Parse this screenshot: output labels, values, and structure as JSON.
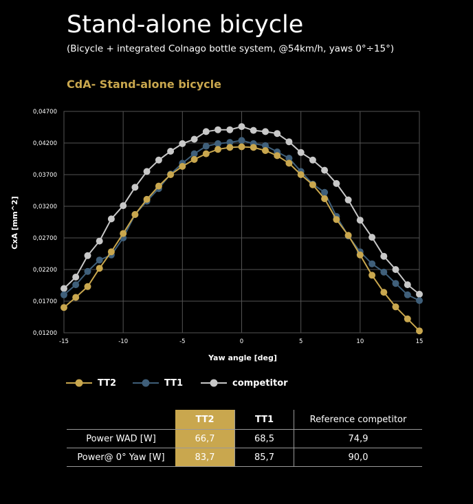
{
  "header": {
    "title": "Stand-alone bicycle",
    "subtitle": "(Bicycle + integrated Colnago bottle system, @54km/h, yaws 0°÷15°)"
  },
  "chart_data": {
    "type": "line",
    "title": "CdA- Stand-alone bicycle",
    "xlabel": "Yaw angle [deg]",
    "ylabel": "CxA [mm^2]",
    "xlim": [
      -15,
      15
    ],
    "ylim": [
      0.012,
      0.047
    ],
    "x_ticks": [
      "-15",
      "-10",
      "-5",
      "0",
      "5",
      "10",
      "15"
    ],
    "x_tick_values": [
      -15,
      -10,
      -5,
      0,
      5,
      10,
      15
    ],
    "y_ticks": [
      "0,01200",
      "0,01700",
      "0,02200",
      "0,02700",
      "0,03200",
      "0,03700",
      "0,04200",
      "0,04700"
    ],
    "y_tick_values": [
      0.012,
      0.017,
      0.022,
      0.027,
      0.032,
      0.037,
      0.042,
      0.047
    ],
    "grid": true,
    "legend_position": "bottom-left",
    "x": [
      -15,
      -14,
      -13,
      -12,
      -11,
      -10,
      -9,
      -8,
      -7,
      -6,
      -5,
      -4,
      -3,
      -2,
      -1,
      0,
      1,
      2,
      3,
      4,
      5,
      6,
      7,
      8,
      9,
      10,
      11,
      12,
      13,
      14,
      15
    ],
    "series": [
      {
        "name": "TT2",
        "color": "#c9a74e",
        "values": [
          0.016,
          0.0176,
          0.0193,
          0.0222,
          0.0248,
          0.0277,
          0.0307,
          0.0331,
          0.0352,
          0.037,
          0.0383,
          0.0394,
          0.0403,
          0.041,
          0.0413,
          0.0414,
          0.0413,
          0.0408,
          0.04,
          0.0388,
          0.037,
          0.0354,
          0.0332,
          0.0299,
          0.0274,
          0.0243,
          0.0211,
          0.0184,
          0.0161,
          0.0142,
          0.0123
        ]
      },
      {
        "name": "TT1",
        "color": "#3f5f7a",
        "values": [
          0.018,
          0.0196,
          0.0217,
          0.0235,
          0.0243,
          0.027,
          0.0307,
          0.0328,
          0.0348,
          0.0371,
          0.0388,
          0.0403,
          0.0415,
          0.0419,
          0.0421,
          0.0424,
          0.0419,
          0.0416,
          0.0406,
          0.0396,
          0.0375,
          0.0355,
          0.0342,
          0.0304,
          0.0273,
          0.0248,
          0.0229,
          0.0216,
          0.0198,
          0.018,
          0.0171
        ]
      },
      {
        "name": "competitor",
        "color": "#c8c8c8",
        "values": [
          0.019,
          0.0208,
          0.0242,
          0.0265,
          0.03,
          0.0321,
          0.035,
          0.0375,
          0.0393,
          0.0407,
          0.0419,
          0.0426,
          0.0438,
          0.0441,
          0.0441,
          0.0446,
          0.044,
          0.0438,
          0.0435,
          0.0422,
          0.0405,
          0.0393,
          0.0377,
          0.0356,
          0.033,
          0.0298,
          0.0271,
          0.0241,
          0.022,
          0.0196,
          0.0181
        ]
      }
    ]
  },
  "table": {
    "headers": [
      "",
      "TT2",
      "TT1",
      "Reference competitor"
    ],
    "rows": [
      {
        "label": "Power WAD [W]",
        "tt2": "66,7",
        "tt1": "68,5",
        "competitor": "74,9"
      },
      {
        "label": "Power@ 0° Yaw [W]",
        "tt2": "83,7",
        "tt1": "85,7",
        "competitor": "90,0"
      }
    ]
  }
}
